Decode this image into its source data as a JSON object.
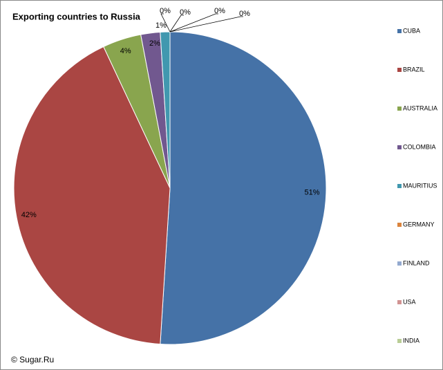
{
  "chart_data": {
    "type": "pie",
    "title": "Exporting countries to Russia",
    "credit": "© Sugar.Ru",
    "categories": [
      "CUBA",
      "BRAZIL",
      "AUSTRALIA",
      "COLOMBIA",
      "MAURITIUS",
      "GERMANY",
      "FINLAND",
      "USA",
      "INDIA"
    ],
    "values": [
      51,
      42,
      4,
      2,
      1,
      0,
      0,
      0,
      0
    ],
    "value_labels": [
      "51%",
      "42%",
      "4%",
      "2%",
      "1%",
      "0%",
      "0%",
      "0%",
      "0%"
    ],
    "colors": [
      "#4572A7",
      "#AA4643",
      "#89A54E",
      "#71588F",
      "#4198AF",
      "#DB843D",
      "#93A9CF",
      "#D19392",
      "#B9CD96"
    ],
    "legend": "right"
  }
}
